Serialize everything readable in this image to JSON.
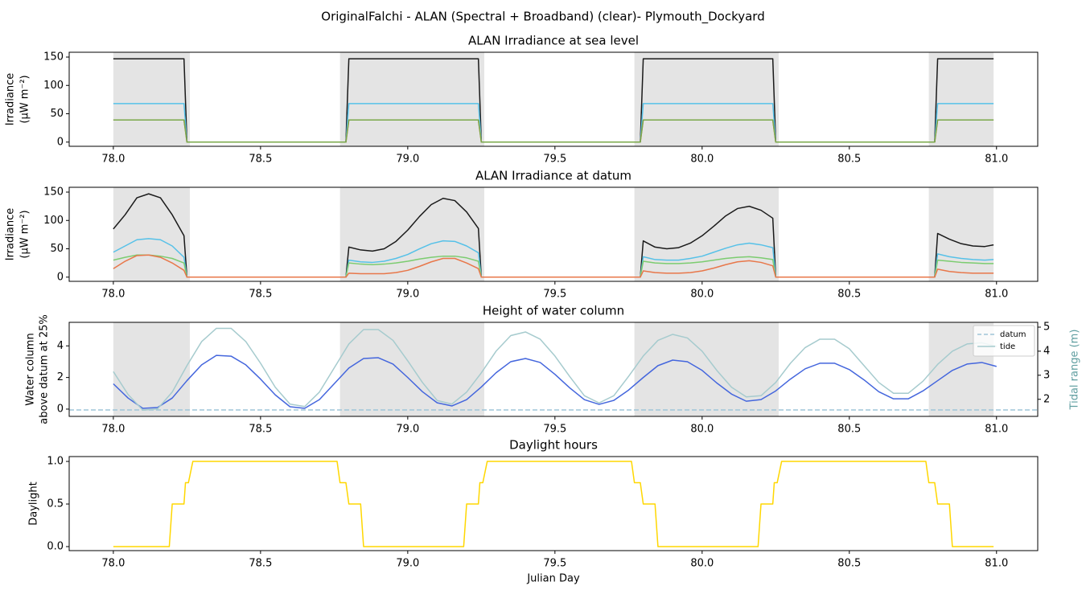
{
  "title": "OriginalFalchi - ALAN (Spectral + Broadband) (clear)- Plymouth_Dockyard",
  "chart_data": [
    {
      "type": "line",
      "title": "ALAN Irradiance at sea level",
      "ylabel": [
        "Irradiance",
        "(μW m⁻²)"
      ],
      "xlim": [
        77.85,
        81.14
      ],
      "ylim": [
        -7.4,
        158.5
      ],
      "xticks": [
        {
          "value": 78,
          "label": "78.0"
        },
        78.5,
        {
          "value": 79,
          "label": "79.0"
        },
        79.5,
        {
          "value": 80,
          "label": "80.0"
        },
        80.5,
        {
          "value": 81,
          "label": "81.0"
        }
      ],
      "yticks": [
        0,
        50,
        100,
        150
      ],
      "shading": [
        [
          78.0,
          78.26
        ],
        [
          78.77,
          79.26
        ],
        [
          79.77,
          80.26
        ],
        [
          80.77,
          80.99
        ]
      ],
      "shading_color": "#e4e4e4",
      "x": [
        78.0,
        78.24,
        78.25,
        78.79,
        78.8,
        79.24,
        79.25,
        79.79,
        79.8,
        80.24,
        80.25,
        80.79,
        80.8,
        80.99
      ],
      "series": [
        {
          "color": "#1a1a1a",
          "values": [
            147,
            147,
            0,
            0,
            147,
            147,
            0,
            0,
            147,
            147,
            0,
            0,
            147,
            147
          ]
        },
        {
          "color": "#56c1e8",
          "values": [
            68,
            68,
            0,
            0,
            68,
            68,
            0,
            0,
            68,
            68,
            0,
            0,
            68,
            68
          ]
        },
        {
          "color": "#e8774a",
          "values": [
            39,
            39,
            0,
            0,
            39,
            39,
            0,
            0,
            39,
            39,
            0,
            0,
            39,
            39
          ]
        },
        {
          "color": "#7aa84a",
          "values": [
            39,
            39,
            0,
            0,
            39,
            39,
            0,
            0,
            39,
            39,
            0,
            0,
            39,
            39
          ]
        }
      ]
    },
    {
      "type": "line",
      "title": "ALAN Irradiance at datum",
      "ylabel": [
        "Irradiance",
        "(μW m⁻²)"
      ],
      "xlim": [
        77.85,
        81.14
      ],
      "ylim": [
        -7.4,
        158.5
      ],
      "xticks": [
        {
          "value": 78,
          "label": "78.0"
        },
        78.5,
        {
          "value": 79,
          "label": "79.0"
        },
        79.5,
        {
          "value": 80,
          "label": "80.0"
        },
        80.5,
        {
          "value": 81,
          "label": "81.0"
        }
      ],
      "yticks": [
        0,
        50,
        100,
        150
      ],
      "shading": [
        [
          78.0,
          78.26
        ],
        [
          78.77,
          79.26
        ],
        [
          79.77,
          80.26
        ],
        [
          80.77,
          80.99
        ]
      ],
      "shading_color": "#e4e4e4",
      "x": [
        78.0,
        78.04,
        78.08,
        78.12,
        78.16,
        78.2,
        78.24,
        78.25,
        78.79,
        78.8,
        78.84,
        78.88,
        78.92,
        78.96,
        79.0,
        79.04,
        79.08,
        79.12,
        79.16,
        79.2,
        79.24,
        79.25,
        79.79,
        79.8,
        79.84,
        79.88,
        79.92,
        79.96,
        80.0,
        80.04,
        80.08,
        80.12,
        80.16,
        80.2,
        80.24,
        80.25,
        80.79,
        80.8,
        80.84,
        80.88,
        80.92,
        80.96,
        80.99
      ],
      "series": [
        {
          "color": "#1a1a1a",
          "values": [
            85,
            110,
            140,
            147,
            140,
            110,
            73,
            0,
            0,
            53,
            48,
            46,
            50,
            63,
            83,
            107,
            128,
            139,
            135,
            115,
            86,
            0,
            0,
            64,
            53,
            50,
            52,
            60,
            73,
            90,
            108,
            121,
            125,
            118,
            104,
            0,
            0,
            77,
            67,
            59,
            55,
            54,
            57
          ]
        },
        {
          "color": "#56c1e8",
          "values": [
            44,
            55,
            66,
            68,
            66,
            55,
            35,
            0,
            0,
            30,
            27,
            26,
            28,
            33,
            40,
            50,
            59,
            64,
            63,
            55,
            43,
            0,
            0,
            36,
            31,
            30,
            30,
            33,
            37,
            44,
            51,
            57,
            60,
            57,
            52,
            0,
            0,
            41,
            36,
            33,
            31,
            30,
            31
          ]
        },
        {
          "color": "#7ccc70",
          "values": [
            30,
            35,
            39,
            39,
            37,
            33,
            25,
            0,
            0,
            25,
            23,
            22,
            23,
            25,
            28,
            32,
            35,
            37,
            37,
            34,
            28,
            0,
            0,
            28,
            25,
            24,
            24,
            25,
            27,
            30,
            33,
            35,
            36,
            34,
            31,
            0,
            0,
            30,
            28,
            26,
            25,
            24,
            24
          ]
        },
        {
          "color": "#e8774a",
          "values": [
            15,
            28,
            38,
            39,
            35,
            25,
            12,
            0,
            0,
            7,
            6,
            6,
            6,
            8,
            12,
            19,
            27,
            33,
            33,
            25,
            15,
            0,
            0,
            11,
            8,
            7,
            7,
            8,
            11,
            16,
            22,
            27,
            29,
            26,
            20,
            0,
            0,
            14,
            10,
            8,
            7,
            7,
            7
          ]
        }
      ]
    },
    {
      "type": "line",
      "title": "Height of water column",
      "ylabel": [
        "Water column",
        "above datum at 25%"
      ],
      "y2label": "Tidal range (m)",
      "y2label_color": "#5f9ea0",
      "xlim": [
        77.85,
        81.14
      ],
      "ylim": [
        -0.46,
        5.49
      ],
      "y2lim": [
        1.29,
        5.2
      ],
      "xticks": [
        {
          "value": 78,
          "label": "78.0"
        },
        78.5,
        {
          "value": 79,
          "label": "79.0"
        },
        79.5,
        {
          "value": 80,
          "label": "80.0"
        },
        80.5,
        {
          "value": 81,
          "label": "81.0"
        }
      ],
      "yticks": [
        0,
        2,
        4
      ],
      "y2ticks": [
        2,
        3,
        4,
        5
      ],
      "shading": [
        [
          78.0,
          78.26
        ],
        [
          78.77,
          79.26
        ],
        [
          79.77,
          80.26
        ],
        [
          80.77,
          80.99
        ]
      ],
      "shading_color": "#e4e4e4",
      "legend": "upper right",
      "reference_line": {
        "name": "datum",
        "value": -0.05,
        "color": "#9fc5d8",
        "style": "dashed"
      },
      "x": [
        78.0,
        78.05,
        78.1,
        78.15,
        78.2,
        78.25,
        78.3,
        78.35,
        78.4,
        78.45,
        78.5,
        78.55,
        78.6,
        78.65,
        78.7,
        78.75,
        78.8,
        78.85,
        78.9,
        78.95,
        79.0,
        79.05,
        79.1,
        79.15,
        79.2,
        79.25,
        79.3,
        79.35,
        79.4,
        79.45,
        79.5,
        79.55,
        79.6,
        79.65,
        79.7,
        79.75,
        79.8,
        79.85,
        79.9,
        79.95,
        80.0,
        80.05,
        80.1,
        80.15,
        80.2,
        80.25,
        80.3,
        80.35,
        80.4,
        80.45,
        80.5,
        80.55,
        80.6,
        80.65,
        80.7,
        80.75,
        80.8,
        80.85,
        80.9,
        80.95,
        81.0
      ],
      "series": [
        {
          "color": "#4466dd",
          "values": [
            1.6,
            0.7,
            0.05,
            0.1,
            0.7,
            1.8,
            2.8,
            3.4,
            3.35,
            2.8,
            1.9,
            0.9,
            0.15,
            0.05,
            0.6,
            1.6,
            2.6,
            3.2,
            3.25,
            2.85,
            2.0,
            1.1,
            0.4,
            0.2,
            0.6,
            1.4,
            2.3,
            3.0,
            3.2,
            2.95,
            2.2,
            1.35,
            0.6,
            0.3,
            0.55,
            1.2,
            2.0,
            2.75,
            3.1,
            3.0,
            2.45,
            1.65,
            0.95,
            0.5,
            0.6,
            1.15,
            1.9,
            2.55,
            2.9,
            2.9,
            2.5,
            1.85,
            1.1,
            0.65,
            0.65,
            1.15,
            1.8,
            2.45,
            2.85,
            2.95,
            2.7
          ]
        },
        {
          "name": "tide",
          "axis": "y2",
          "color": "#a6cbce",
          "values": [
            3.15,
            2.2,
            1.55,
            1.6,
            2.3,
            3.4,
            4.4,
            4.95,
            4.95,
            4.4,
            3.5,
            2.5,
            1.8,
            1.7,
            2.3,
            3.3,
            4.3,
            4.9,
            4.9,
            4.45,
            3.6,
            2.7,
            1.95,
            1.8,
            2.3,
            3.1,
            4.0,
            4.65,
            4.8,
            4.5,
            3.8,
            2.95,
            2.15,
            1.85,
            2.15,
            2.95,
            3.8,
            4.45,
            4.7,
            4.55,
            4.0,
            3.2,
            2.5,
            2.1,
            2.15,
            2.7,
            3.5,
            4.15,
            4.5,
            4.5,
            4.1,
            3.4,
            2.7,
            2.25,
            2.25,
            2.75,
            3.45,
            4.0,
            4.3,
            4.35,
            4.2
          ]
        }
      ]
    },
    {
      "type": "line",
      "title": "Daylight hours",
      "ylabel": [
        "Daylight"
      ],
      "xlabel": "Julian Day",
      "xlim": [
        77.85,
        81.14
      ],
      "ylim": [
        -0.047,
        1.057
      ],
      "xticks": [
        {
          "value": 78,
          "label": "78.0"
        },
        78.5,
        {
          "value": 79,
          "label": "79.0"
        },
        79.5,
        {
          "value": 80,
          "label": "80.0"
        },
        80.5,
        {
          "value": 81,
          "label": "81.0"
        }
      ],
      "yticks": [
        {
          "value": 0,
          "label": "0.0"
        },
        0.5,
        {
          "value": 1,
          "label": "1.0"
        }
      ],
      "x": [
        78.0,
        78.19,
        78.2,
        78.24,
        78.245,
        78.255,
        78.27,
        78.76,
        78.77,
        78.79,
        78.8,
        78.84,
        78.85,
        79.19,
        79.2,
        79.24,
        79.245,
        79.255,
        79.27,
        79.76,
        79.77,
        79.79,
        79.8,
        79.84,
        79.85,
        80.19,
        80.2,
        80.24,
        80.245,
        80.255,
        80.27,
        80.76,
        80.77,
        80.79,
        80.8,
        80.84,
        80.85,
        80.99
      ],
      "series": [
        {
          "color": "#ffd700",
          "values": [
            0,
            0,
            0.5,
            0.5,
            0.75,
            0.75,
            1,
            1,
            0.75,
            0.75,
            0.5,
            0.5,
            0,
            0,
            0.5,
            0.5,
            0.75,
            0.75,
            1,
            1,
            0.75,
            0.75,
            0.5,
            0.5,
            0,
            0,
            0.5,
            0.5,
            0.75,
            0.75,
            1,
            1,
            0.75,
            0.75,
            0.5,
            0.5,
            0,
            0
          ]
        }
      ]
    }
  ]
}
